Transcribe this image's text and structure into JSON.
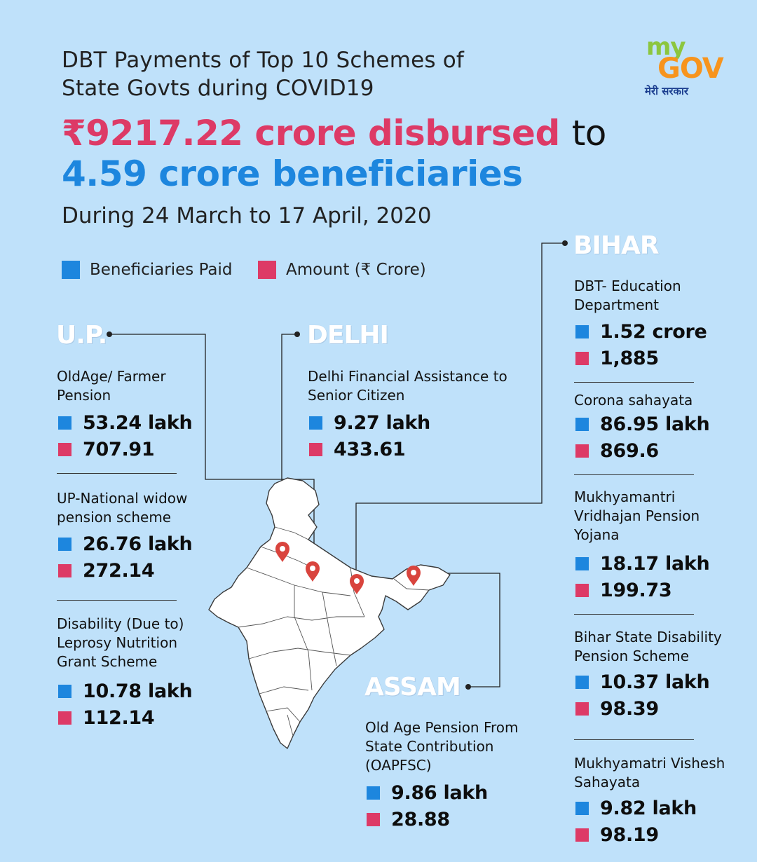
{
  "title": {
    "line1": "DBT Payments of Top 10 Schemes of",
    "line2": "State Govts during COVID19"
  },
  "headline": {
    "amount": "₹9217.22 crore disbursed",
    "connector": "to",
    "beneficiaries": "4.59 crore beneficiaries"
  },
  "period": "During 24 March to 17 April, 2020",
  "logo": {
    "my": "my",
    "gov": "GOV",
    "tagline": "मेरी सरकार"
  },
  "legend": {
    "beneficiaries": "Beneficiaries Paid",
    "amount": "Amount (₹ Crore)"
  },
  "colors": {
    "background": "#bfe1fa",
    "beneficiaries": "#1d86de",
    "amount": "#dd3a66",
    "map_pin": "#d9443d"
  },
  "up": {
    "name": "U.P.",
    "schemes": [
      {
        "name": "OldAge/ Farmer Pension",
        "beneficiaries": "53.24 lakh",
        "amount": "707.91"
      },
      {
        "name": "UP-National widow pension scheme",
        "beneficiaries": "26.76 lakh",
        "amount": "272.14"
      },
      {
        "name": "Disability (Due to) Leprosy Nutrition Grant Scheme",
        "beneficiaries": "10.78 lakh",
        "amount": "112.14"
      }
    ]
  },
  "delhi": {
    "name": "DELHI",
    "schemes": [
      {
        "name": "Delhi Financial Assistance to Senior Citizen",
        "beneficiaries": "9.27 lakh",
        "amount": "433.61"
      }
    ]
  },
  "assam": {
    "name": "ASSAM",
    "schemes": [
      {
        "name": "Old Age Pension From State Contribution (OAPFSC)",
        "beneficiaries": "9.86 lakh",
        "amount": "28.88"
      }
    ]
  },
  "bihar": {
    "name": "BIHAR",
    "schemes": [
      {
        "name": "DBT- Education Department",
        "beneficiaries": "1.52 crore",
        "amount": "1,885"
      },
      {
        "name": "Corona sahayata",
        "beneficiaries": "86.95 lakh",
        "amount": "869.6"
      },
      {
        "name": "Mukhyamantri Vridhajan Pension Yojana",
        "beneficiaries": "18.17 lakh",
        "amount": "199.73"
      },
      {
        "name": "Bihar State Disability Pension Scheme",
        "beneficiaries": "10.37 lakh",
        "amount": "98.39"
      },
      {
        "name": "Mukhyamatri Vishesh Sahayata",
        "beneficiaries": "9.82 lakh",
        "amount": "98.19"
      }
    ]
  }
}
